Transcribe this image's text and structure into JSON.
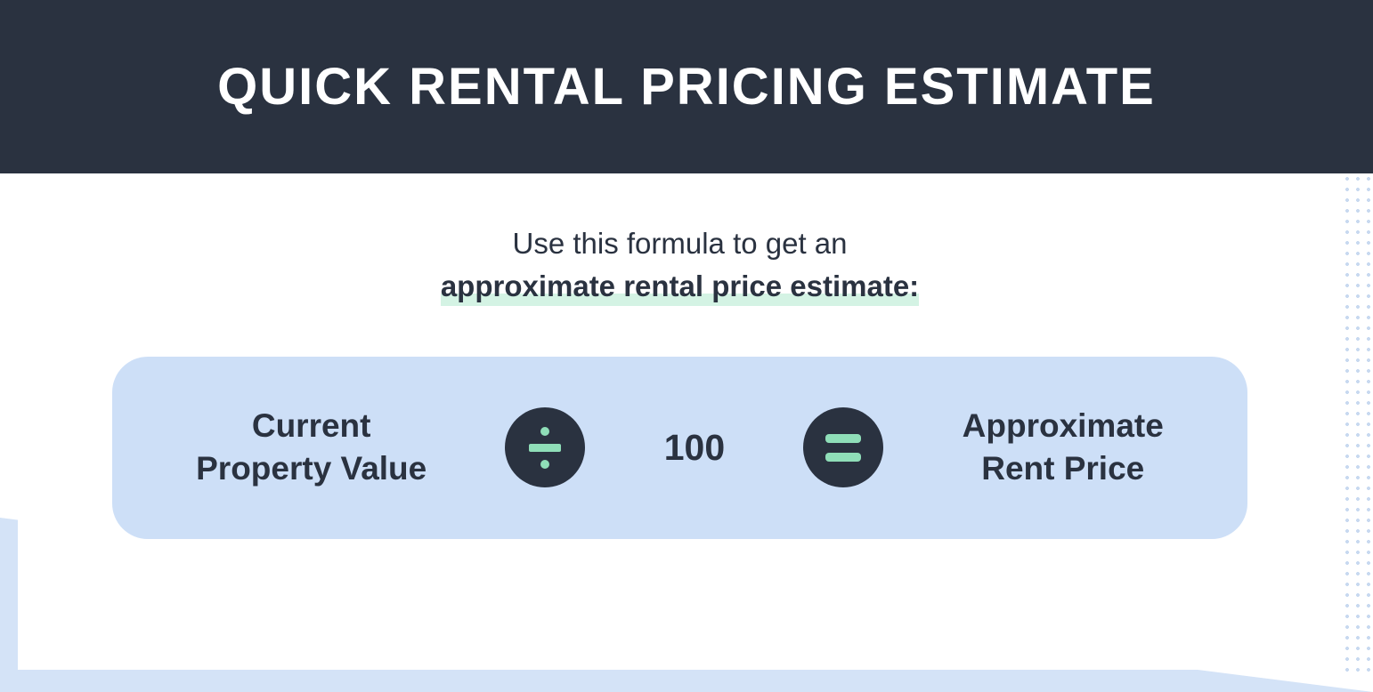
{
  "header": {
    "title": "QUICK RENTAL PRICING ESTIMATE",
    "background_color": "#2a3240",
    "text_color": "#ffffff",
    "font_size": 58,
    "font_weight": 800
  },
  "subtitle": {
    "line1": "Use this formula to get an",
    "line2": "approximate rental price estimate:",
    "text_color": "#2a3240",
    "highlight_color": "#d4f3e4",
    "font_size": 33
  },
  "formula": {
    "box_background": "#cddff7",
    "box_border_radius": 40,
    "text_color": "#2a3240",
    "font_size": 37,
    "operand1_line1": "Current",
    "operand1_line2": "Property Value",
    "operator_divide": "÷",
    "divisor": "100",
    "operator_equals": "=",
    "result_line1": "Approximate",
    "result_line2": "Rent Price",
    "operator_circle_bg": "#2a3240",
    "operator_symbol_color": "#8fdeb8",
    "operator_circle_size": 90
  },
  "background": {
    "card_color": "#ffffff",
    "accent_color": "#d4e3f7",
    "dotted_color": "#c8d9f0"
  }
}
